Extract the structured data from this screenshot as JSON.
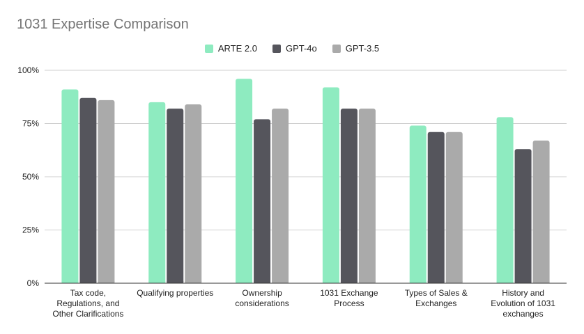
{
  "chart_data": {
    "type": "bar",
    "title": "1031 Expertise Comparison",
    "xlabel": "",
    "ylabel": "",
    "ylim": [
      0,
      100
    ],
    "yticks": [
      "0%",
      "25%",
      "50%",
      "75%",
      "100%"
    ],
    "grid": true,
    "legend_position": "top",
    "categories": [
      [
        "Tax code,",
        "Regulations, and",
        "Other Clarifications"
      ],
      [
        "Qualifying properties"
      ],
      [
        "Ownership",
        "considerations"
      ],
      [
        "1031 Exchange",
        "Process"
      ],
      [
        "Types of Sales &",
        "Exchanges"
      ],
      [
        "History and",
        "Evolution of 1031",
        "exchanges"
      ]
    ],
    "series": [
      {
        "name": "ARTE 2.0",
        "color": "#8eebc0",
        "values": [
          91,
          85,
          96,
          92,
          74,
          78
        ]
      },
      {
        "name": "GPT-4o",
        "color": "#55555c",
        "values": [
          87,
          82,
          77,
          82,
          71,
          63
        ]
      },
      {
        "name": "GPT-3.5",
        "color": "#aaaaaa",
        "values": [
          86,
          84,
          82,
          82,
          71,
          67
        ]
      }
    ]
  }
}
